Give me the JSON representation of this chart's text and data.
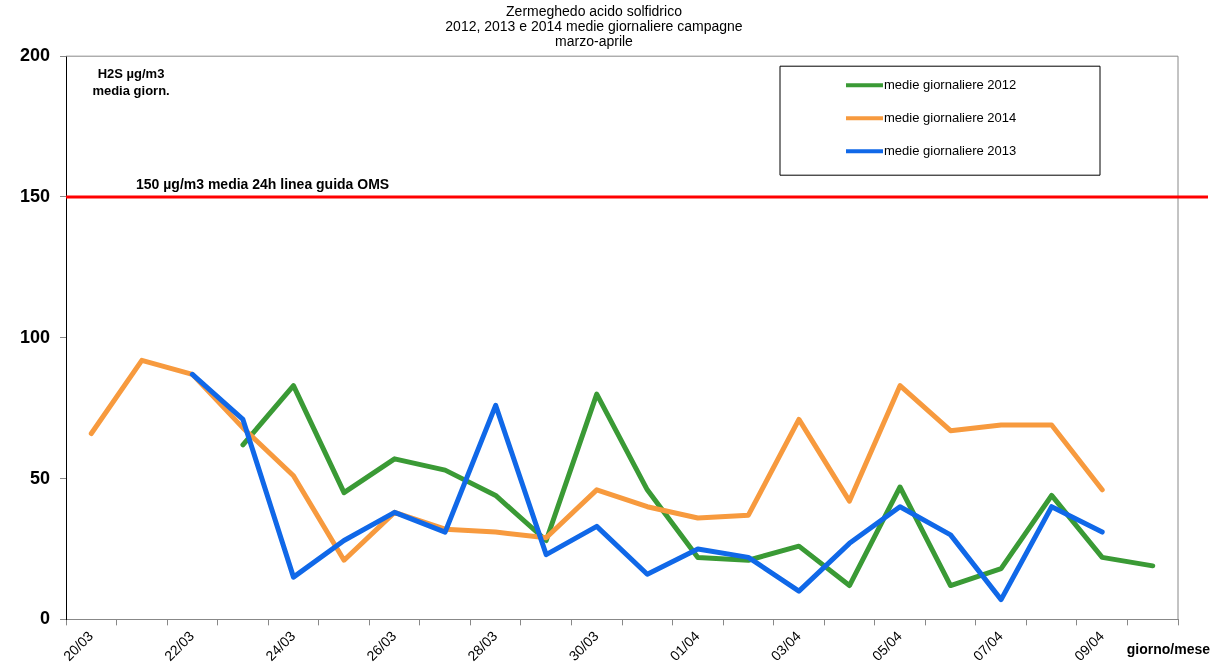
{
  "chart_data": {
    "type": "line",
    "title": "Zermeghedo acido solfidrico\n2012, 2013 e 2014 medie giornaliere campagne\nmarzo-aprile",
    "ylabel": "H2S µg/m3\nmedia giorn.",
    "xlabel": "giorno/mese",
    "categories": [
      "20/03",
      null,
      "22/03",
      null,
      "24/03",
      null,
      "26/03",
      null,
      "28/03",
      null,
      "30/03",
      null,
      "01/04",
      null,
      "03/04",
      null,
      "05/04",
      null,
      "07/04",
      null,
      "09/04",
      null
    ],
    "series": [
      {
        "name": "medie giornaliere 2012",
        "color": "#3a9a35",
        "values": [
          null,
          null,
          null,
          62,
          83,
          45,
          57,
          53,
          44,
          28,
          80,
          46,
          22,
          21,
          26,
          12,
          47,
          12,
          18,
          44,
          22,
          19
        ]
      },
      {
        "name": "medie giornaliere 2014",
        "color": "#f79a3e",
        "values": [
          66,
          92,
          87,
          68,
          51,
          21,
          38,
          32,
          31,
          29,
          46,
          40,
          36,
          37,
          71,
          42,
          83,
          67,
          69,
          69,
          46,
          null
        ]
      },
      {
        "name": "medie giornaliere 2013",
        "color": "#1068e8",
        "values": [
          null,
          null,
          87,
          71,
          15,
          28,
          38,
          31,
          76,
          23,
          33,
          16,
          25,
          22,
          10,
          27,
          40,
          30,
          7,
          40,
          31,
          null
        ]
      }
    ],
    "ylim": [
      0,
      200
    ],
    "yticks": [
      0,
      50,
      100,
      150,
      200
    ],
    "grid": false,
    "legend": "top right",
    "marker": "none",
    "line_style": "solid",
    "ref_lines": [
      {
        "axis": "y",
        "value": 150,
        "label": "150 µg/m3 media 24h linea guida OMS",
        "color": "#ff0000",
        "line_style": "solid"
      }
    ]
  }
}
